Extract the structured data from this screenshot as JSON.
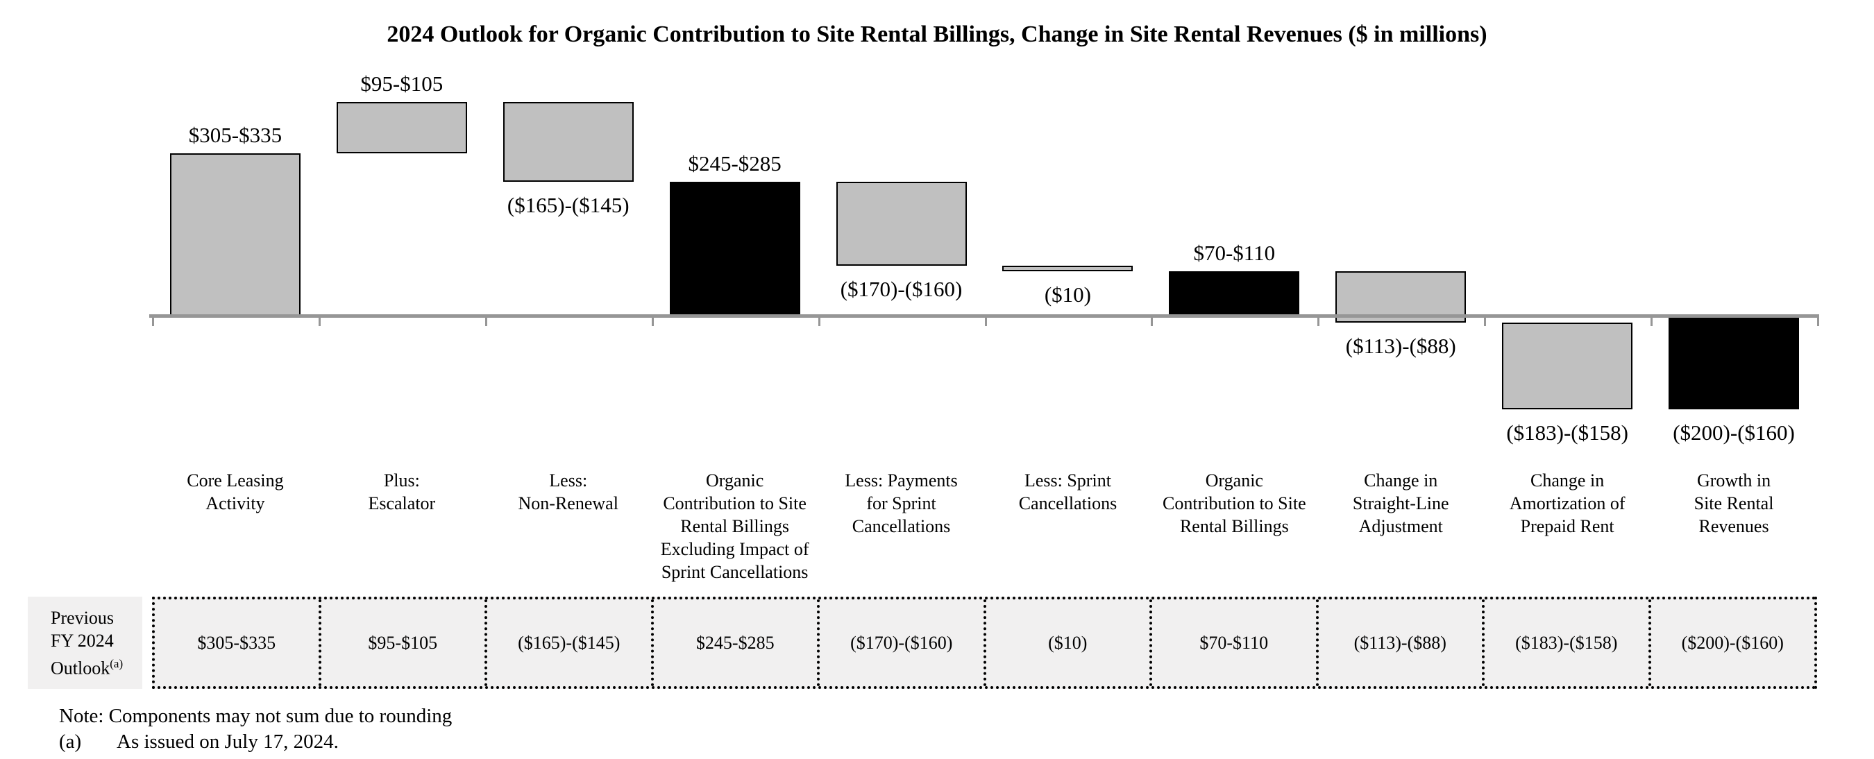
{
  "chart_data": {
    "type": "bar",
    "subtype": "waterfall",
    "title": "2024 Outlook for Organic Contribution to Site Rental Billings, Change in Site Rental Revenues ($ in millions)",
    "units": "$ in millions",
    "grid": false,
    "legend": false,
    "y_axis_shown": false,
    "baseline_value": 0,
    "categories": [
      {
        "label_lines": [
          "Core Leasing",
          "Activity"
        ],
        "value_label": "$305-$335",
        "range_low": 305,
        "range_high": 335,
        "cumulative_start": 0,
        "cumulative_end": 320,
        "color": "gray",
        "label_position": "above"
      },
      {
        "label_lines": [
          "Plus:",
          "Escalator"
        ],
        "value_label": "$95-$105",
        "range_low": 95,
        "range_high": 105,
        "cumulative_start": 320,
        "cumulative_end": 420,
        "color": "gray",
        "label_position": "above"
      },
      {
        "label_lines": [
          "Less:",
          "Non-Renewal"
        ],
        "value_label": "($165)-($145)",
        "range_low": -165,
        "range_high": -145,
        "cumulative_start": 420,
        "cumulative_end": 265,
        "color": "gray",
        "label_position": "below"
      },
      {
        "label_lines": [
          "Organic",
          "Contribution to Site",
          "Rental Billings",
          "Excluding Impact of",
          "Sprint Cancellations"
        ],
        "value_label": "$245-$285",
        "range_low": 245,
        "range_high": 285,
        "cumulative_start": 0,
        "cumulative_end": 265,
        "color": "black",
        "label_position": "above"
      },
      {
        "label_lines": [
          "Less: Payments",
          "for Sprint",
          "Cancellations"
        ],
        "value_label": "($170)-($160)",
        "range_low": -170,
        "range_high": -160,
        "cumulative_start": 265,
        "cumulative_end": 100,
        "color": "gray",
        "label_position": "below"
      },
      {
        "label_lines": [
          "Less: Sprint",
          "Cancellations"
        ],
        "value_label": "($10)",
        "range_low": -10,
        "range_high": -10,
        "cumulative_start": 100,
        "cumulative_end": 90,
        "color": "gray",
        "label_position": "below"
      },
      {
        "label_lines": [
          "Organic",
          "Contribution to Site",
          "Rental Billings"
        ],
        "value_label": "$70-$110",
        "range_low": 70,
        "range_high": 110,
        "cumulative_start": 0,
        "cumulative_end": 90,
        "color": "black",
        "label_position": "above"
      },
      {
        "label_lines": [
          "Change in",
          "Straight-Line",
          "Adjustment"
        ],
        "value_label": "($113)-($88)",
        "range_low": -113,
        "range_high": -88,
        "cumulative_start": 90,
        "cumulative_end": -10.5,
        "color": "gray",
        "label_position": "below"
      },
      {
        "label_lines": [
          "Change in",
          "Amortization of",
          "Prepaid Rent"
        ],
        "value_label": "($183)-($158)",
        "range_low": -183,
        "range_high": -158,
        "cumulative_start": -10.5,
        "cumulative_end": -181,
        "color": "gray",
        "label_position": "below"
      },
      {
        "label_lines": [
          "Growth in",
          "Site Rental",
          "Revenues"
        ],
        "value_label": "($200)-($160)",
        "range_low": -200,
        "range_high": -160,
        "cumulative_start": 0,
        "cumulative_end": -180,
        "color": "black",
        "label_position": "below"
      }
    ],
    "colors": {
      "gray_bar_fill": "#c0c0c0",
      "bar_border": "#000000",
      "black_bar_fill": "#000000",
      "axis_line": "#969696",
      "table_cell_background": "#f1f0f0"
    }
  },
  "table": {
    "row_label_lines": [
      "Previous",
      "FY 2024",
      "Outlook"
    ],
    "row_label_superscript": "(a)",
    "values": [
      "$305-$335",
      "$95-$105",
      "($165)-($145)",
      "$245-$285",
      "($170)-($160)",
      "($10)",
      "$70-$110",
      "($113)-($88)",
      "($183)-($158)",
      "($200)-($160)"
    ]
  },
  "notes": {
    "line1": "Note: Components may not sum due to rounding",
    "marker": "(a)",
    "line2": "As issued on July 17, 2024."
  }
}
